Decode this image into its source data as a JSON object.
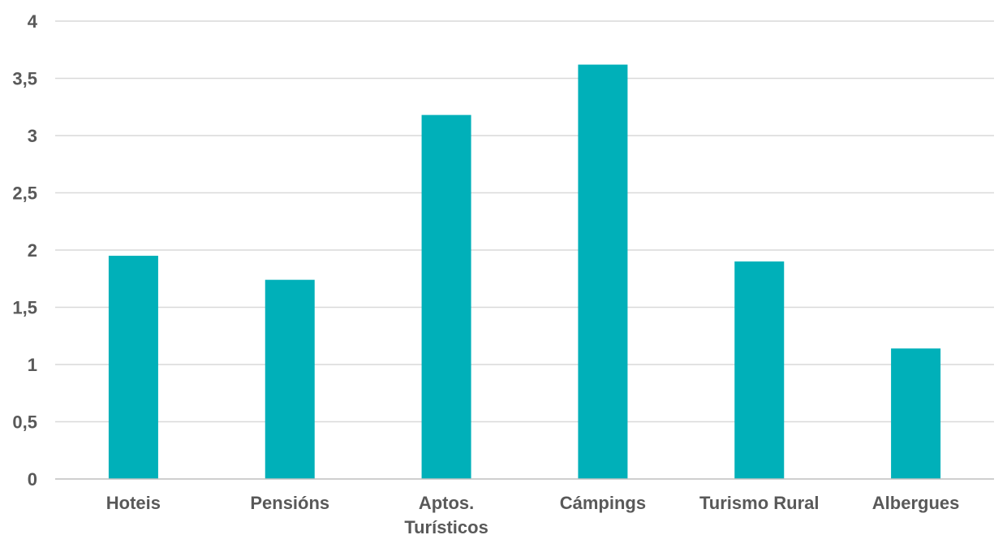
{
  "chart_data": {
    "type": "bar",
    "title": "",
    "xlabel": "",
    "ylabel": "",
    "categories": [
      [
        "Hoteis"
      ],
      [
        "Pensións"
      ],
      [
        "Aptos.",
        "Turísticos"
      ],
      [
        "Cámpings"
      ],
      [
        "Turismo Rural"
      ],
      [
        "Albergues"
      ]
    ],
    "values": [
      1.95,
      1.74,
      3.18,
      3.62,
      1.9,
      1.14
    ],
    "ylim": [
      0,
      4
    ],
    "yticks": [
      {
        "value": 0,
        "label": "0"
      },
      {
        "value": 0.5,
        "label": "0,5"
      },
      {
        "value": 1,
        "label": "1"
      },
      {
        "value": 1.5,
        "label": "1,5"
      },
      {
        "value": 2,
        "label": "2"
      },
      {
        "value": 2.5,
        "label": "2,5"
      },
      {
        "value": 3,
        "label": "3"
      },
      {
        "value": 3.5,
        "label": "3,5"
      },
      {
        "value": 4,
        "label": "4"
      }
    ],
    "grid": true,
    "legend": "none",
    "bar_color": "#00b0b9"
  }
}
